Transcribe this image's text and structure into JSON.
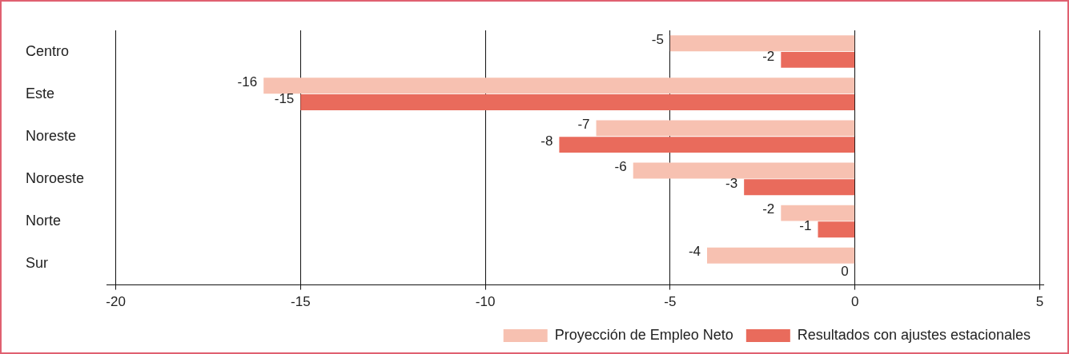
{
  "chart_data": {
    "type": "bar",
    "orientation": "horizontal",
    "categories": [
      "Centro",
      "Este",
      "Noreste",
      "Noroeste",
      "Norte",
      "Sur"
    ],
    "series": [
      {
        "name": "Proyección de Empleo Neto",
        "color": "#f7c1b1",
        "values": [
          -5,
          -16,
          -7,
          -6,
          -2,
          -4
        ]
      },
      {
        "name": "Resultados con ajustes estacionales",
        "color": "#e96b5c",
        "values": [
          -2,
          -15,
          -8,
          -3,
          -1,
          0
        ]
      }
    ],
    "xlim": [
      -20.25,
      5.1
    ],
    "xticks": [
      -20,
      -15,
      -10,
      -5,
      0,
      5
    ],
    "grid": "x",
    "legend": "bottom right",
    "data_labels": true
  }
}
